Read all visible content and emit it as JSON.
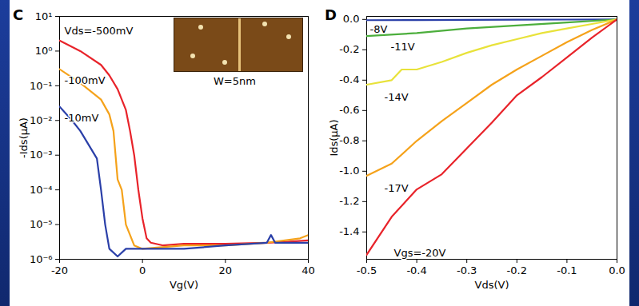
{
  "chart_data": [
    {
      "type": "line",
      "title": "C",
      "x_label": "Vg(V)",
      "y_label": "-Ids(μA)",
      "log": "y",
      "xlim": [
        -20,
        40
      ],
      "xticks": [
        -20,
        0,
        20,
        40
      ],
      "ylim": [
        1e-06,
        10
      ],
      "yticks": [
        {
          "value": 1e-06,
          "label": "10⁻⁶"
        },
        {
          "value": 1e-05,
          "label": "10⁻⁵"
        },
        {
          "value": 0.0001,
          "label": "10⁻⁴"
        },
        {
          "value": 0.001,
          "label": "10⁻³"
        },
        {
          "value": 0.01,
          "label": "10⁻²"
        },
        {
          "value": 0.1,
          "label": "10⁻¹"
        },
        {
          "value": 1,
          "label": "10⁰"
        },
        {
          "value": 10,
          "label": "10¹"
        }
      ],
      "annotations": [
        "W=5nm"
      ],
      "series": [
        {
          "name": "Vds=-500mV",
          "color": "#e8232a",
          "x": [
            -20,
            -15,
            -10,
            -8,
            -6,
            -4,
            -3,
            -2,
            -1,
            0,
            1,
            2,
            5,
            10,
            20,
            30,
            35,
            40
          ],
          "values": [
            2,
            1,
            0.4,
            0.2,
            0.08,
            0.02,
            0.005,
            0.001,
            0.0001,
            1.5e-05,
            4e-06,
            3e-06,
            2.5e-06,
            2.8e-06,
            2.8e-06,
            3e-06,
            3.2e-06,
            3.5e-06
          ]
        },
        {
          "name": "-100mV",
          "color": "#f5a21a",
          "x": [
            -20,
            -15,
            -10,
            -8,
            -7,
            -6,
            -5,
            -4,
            -3,
            -2,
            0,
            10,
            20,
            30,
            38,
            40
          ],
          "values": [
            0.3,
            0.12,
            0.04,
            0.015,
            0.005,
            0.0002,
            0.0001,
            1e-05,
            5e-06,
            2.5e-06,
            2e-06,
            2.5e-06,
            2.5e-06,
            3e-06,
            4e-06,
            5e-06
          ]
        },
        {
          "name": "-10mV",
          "color": "#2a3fa8",
          "x": [
            -20,
            -17,
            -15,
            -13,
            -11,
            -10,
            -9,
            -8,
            -6,
            -4,
            0,
            10,
            20,
            30,
            31,
            32,
            40
          ],
          "values": [
            0.025,
            0.01,
            0.005,
            0.002,
            0.0008,
            0.0001,
            1e-05,
            2e-06,
            1.2e-06,
            2e-06,
            2e-06,
            2e-06,
            2.5e-06,
            3e-06,
            5e-06,
            3e-06,
            3e-06
          ]
        }
      ]
    },
    {
      "type": "line",
      "title": "D",
      "x_label": "Vds(V)",
      "y_label": "Ids(μA)",
      "xlim": [
        -0.5,
        0
      ],
      "xticks": [
        -0.5,
        -0.4,
        -0.3,
        -0.2,
        -0.1,
        {
          "value": 0,
          "label": "0.0"
        }
      ],
      "ylim": [
        -1.58,
        0.02
      ],
      "yticks": [
        -1.4,
        -1.2,
        {
          "value": -1,
          "label": "-1.0"
        },
        -0.8,
        -0.6,
        -0.4,
        -0.2,
        {
          "value": 0,
          "label": "0.0"
        }
      ],
      "series": [
        {
          "name": "-8V",
          "color": "#2a3fa8",
          "x": [
            -0.5,
            -0.4,
            -0.3,
            -0.2,
            -0.1,
            0
          ],
          "values": [
            -0.005,
            -0.004,
            -0.003,
            -0.002,
            -0.001,
            0
          ]
        },
        {
          "name": "-11V",
          "color": "#4cae3c",
          "x": [
            -0.5,
            -0.4,
            -0.3,
            -0.2,
            -0.1,
            0
          ],
          "values": [
            -0.11,
            -0.09,
            -0.06,
            -0.04,
            -0.02,
            0
          ]
        },
        {
          "name": "-14V",
          "color": "#e8e23a",
          "x": [
            -0.5,
            -0.45,
            -0.43,
            -0.4,
            -0.35,
            -0.3,
            -0.25,
            -0.2,
            -0.15,
            -0.1,
            -0.05,
            0
          ],
          "values": [
            -0.43,
            -0.4,
            -0.33,
            -0.33,
            -0.28,
            -0.22,
            -0.17,
            -0.13,
            -0.09,
            -0.06,
            -0.03,
            0
          ]
        },
        {
          "name": "-17V",
          "color": "#f5a21a",
          "x": [
            -0.5,
            -0.45,
            -0.4,
            -0.35,
            -0.3,
            -0.25,
            -0.2,
            -0.15,
            -0.1,
            -0.05,
            0
          ],
          "values": [
            -1.03,
            -0.95,
            -0.8,
            -0.67,
            -0.55,
            -0.43,
            -0.33,
            -0.24,
            -0.15,
            -0.07,
            0
          ]
        },
        {
          "name": "Vgs=-20V",
          "color": "#e8232a",
          "x": [
            -0.5,
            -0.45,
            -0.4,
            -0.35,
            -0.3,
            -0.25,
            -0.2,
            -0.15,
            -0.1,
            -0.05,
            0
          ],
          "values": [
            -1.55,
            -1.3,
            -1.12,
            -1.02,
            -0.85,
            -0.68,
            -0.5,
            -0.38,
            -0.25,
            -0.12,
            0
          ]
        }
      ]
    }
  ]
}
